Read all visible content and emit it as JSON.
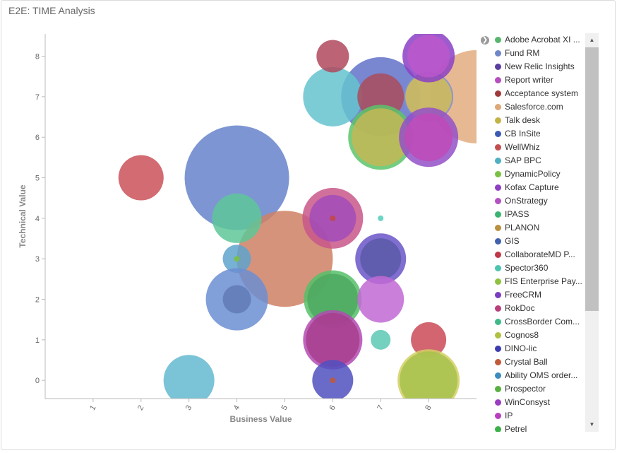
{
  "panel": {
    "title": "E2E: TIME Analysis"
  },
  "chart_data": {
    "type": "scatter",
    "title": "",
    "xlabel": "Business Value",
    "ylabel": "Technical Value",
    "xlim": [
      0,
      9
    ],
    "ylim": [
      -0.45,
      8.55
    ],
    "x_ticks": [
      1,
      2,
      3,
      4,
      5,
      6,
      7,
      8
    ],
    "y_ticks": [
      0,
      1,
      2,
      3,
      4,
      5,
      6,
      7,
      8
    ],
    "legend_position": "right",
    "series": [
      {
        "name": "Adobe Acrobat XI ...",
        "color": "#57b56e"
      },
      {
        "name": "Fund RM",
        "color": "#6f87c8"
      },
      {
        "name": "New Relic Insights",
        "color": "#5a3fa0"
      },
      {
        "name": "Report writer",
        "color": "#b64dc0"
      },
      {
        "name": "Acceptance system",
        "color": "#a03a3a"
      },
      {
        "name": "Salesforce.com",
        "color": "#dea878"
      },
      {
        "name": "Talk desk",
        "color": "#c3b445"
      },
      {
        "name": "CB InSite",
        "color": "#3a5ab5"
      },
      {
        "name": "WellWhiz",
        "color": "#c24f4f"
      },
      {
        "name": "SAP BPC",
        "color": "#4fb0c4"
      },
      {
        "name": "DynamicPolicy",
        "color": "#7ac143"
      },
      {
        "name": "Kofax Capture",
        "color": "#8e3fc2"
      },
      {
        "name": "OnStrategy",
        "color": "#b54fc4"
      },
      {
        "name": "IPASS",
        "color": "#3cb371"
      },
      {
        "name": "PLANON",
        "color": "#b89040"
      },
      {
        "name": "GIS",
        "color": "#4060b0"
      },
      {
        "name": "CollaborateMD P...",
        "color": "#c03848"
      },
      {
        "name": "Spector360",
        "color": "#4cc4b0"
      },
      {
        "name": "FIS Enterprise Pay...",
        "color": "#90c040"
      },
      {
        "name": "FreeCRM",
        "color": "#7a3cc0"
      },
      {
        "name": "RokDoc",
        "color": "#b8407a"
      },
      {
        "name": "CrossBorder Com...",
        "color": "#40b888"
      },
      {
        "name": "Cognos8",
        "color": "#b0c040"
      },
      {
        "name": "DINO-lic",
        "color": "#3c3cb0"
      },
      {
        "name": "Crystal Ball",
        "color": "#c05a38"
      },
      {
        "name": "Ability OMS order...",
        "color": "#3c8cc0"
      },
      {
        "name": "Prospector",
        "color": "#58b040"
      },
      {
        "name": "WinConsyst",
        "color": "#9a3cc0"
      },
      {
        "name": "IP",
        "color": "#b840c0"
      },
      {
        "name": "Petrel",
        "color": "#3cb048"
      }
    ],
    "bubbles": [
      {
        "x": 4,
        "y": 5,
        "r": 74,
        "color": "#6f8bce",
        "opacity": 0.9
      },
      {
        "x": 5,
        "y": 3,
        "r": 68,
        "color": "#cf8064",
        "opacity": 0.85
      },
      {
        "x": 7,
        "y": 7,
        "r": 56,
        "color": "#6271c8",
        "opacity": 0.85
      },
      {
        "x": 9,
        "y": 7,
        "r": 66,
        "color": "#e3ad80",
        "opacity": 0.85
      },
      {
        "x": 8,
        "y": 7,
        "r": 35,
        "color": "#7f8fd2",
        "opacity": 0.85
      },
      {
        "x": 8,
        "y": 7,
        "r": 33,
        "color": "#d2bd55",
        "opacity": 0.85
      },
      {
        "x": 6,
        "y": 7,
        "r": 42,
        "color": "#65c3cf",
        "opacity": 0.85
      },
      {
        "x": 7,
        "y": 7,
        "r": 33,
        "color": "#a94c5c",
        "opacity": 0.85
      },
      {
        "x": 7,
        "y": 6,
        "r": 46,
        "color": "#5cc46a",
        "opacity": 0.85
      },
      {
        "x": 7,
        "y": 6,
        "r": 41,
        "color": "#c4b755",
        "opacity": 0.85
      },
      {
        "x": 8,
        "y": 6,
        "r": 42,
        "color": "#9350c8",
        "opacity": 0.85
      },
      {
        "x": 8,
        "y": 6,
        "r": 34,
        "color": "#c04ab8",
        "opacity": 0.85
      },
      {
        "x": 8,
        "y": 8,
        "r": 37,
        "color": "#8b3fc6",
        "opacity": 0.85
      },
      {
        "x": 8,
        "y": 8,
        "r": 30,
        "color": "#be57cc",
        "opacity": 0.8
      },
      {
        "x": 6,
        "y": 8,
        "r": 23,
        "color": "#b0485e",
        "opacity": 0.85
      },
      {
        "x": 2,
        "y": 5,
        "r": 32,
        "color": "#cd5b63",
        "opacity": 0.9
      },
      {
        "x": 4,
        "y": 4,
        "r": 35,
        "color": "#5ec798",
        "opacity": 0.85
      },
      {
        "x": 6,
        "y": 4,
        "r": 43,
        "color": "#c8578a",
        "opacity": 0.85
      },
      {
        "x": 6,
        "y": 4,
        "r": 33,
        "color": "#a24bb8",
        "opacity": 0.85
      },
      {
        "x": 6,
        "y": 4,
        "r": 4,
        "color": "#c04848",
        "opacity": 0.9
      },
      {
        "x": 7,
        "y": 4,
        "r": 4,
        "color": "#5bd0c0",
        "opacity": 0.9
      },
      {
        "x": 4,
        "y": 3,
        "r": 20,
        "color": "#5fa3cc",
        "opacity": 0.85
      },
      {
        "x": 4,
        "y": 3,
        "r": 4,
        "color": "#7ac143",
        "opacity": 0.9
      },
      {
        "x": 7,
        "y": 3,
        "r": 36,
        "color": "#6a55c8",
        "opacity": 0.85
      },
      {
        "x": 7,
        "y": 3,
        "r": 29,
        "color": "#5a5aa8",
        "opacity": 0.85
      },
      {
        "x": 4,
        "y": 2,
        "r": 44,
        "color": "#6b8ed2",
        "opacity": 0.85
      },
      {
        "x": 4,
        "y": 2,
        "r": 20,
        "color": "#607ab4",
        "opacity": 0.85
      },
      {
        "x": 6,
        "y": 2,
        "r": 41,
        "color": "#55c068",
        "opacity": 0.85
      },
      {
        "x": 6,
        "y": 2,
        "r": 36,
        "color": "#4ea860",
        "opacity": 0.85
      },
      {
        "x": 7,
        "y": 2,
        "r": 33,
        "color": "#c16ad4",
        "opacity": 0.85
      },
      {
        "x": 6,
        "y": 1,
        "r": 42,
        "color": "#b34ab2",
        "opacity": 0.85
      },
      {
        "x": 6,
        "y": 1,
        "r": 38,
        "color": "#a83c8c",
        "opacity": 0.8
      },
      {
        "x": 7,
        "y": 1,
        "r": 14,
        "color": "#5cc8b4",
        "opacity": 0.85
      },
      {
        "x": 8,
        "y": 1,
        "r": 25,
        "color": "#cd5460",
        "opacity": 0.9
      },
      {
        "x": 6,
        "y": 0,
        "r": 29,
        "color": "#5050c0",
        "opacity": 0.85
      },
      {
        "x": 6,
        "y": 0,
        "r": 4,
        "color": "#c05a38",
        "opacity": 0.9
      },
      {
        "x": 3,
        "y": 0,
        "r": 36,
        "color": "#6dbcd2",
        "opacity": 0.9
      },
      {
        "x": 8,
        "y": 0,
        "r": 44,
        "color": "#d4d064",
        "opacity": 0.85
      },
      {
        "x": 8,
        "y": 0,
        "r": 41,
        "color": "#a6c24c",
        "opacity": 0.85
      }
    ]
  }
}
